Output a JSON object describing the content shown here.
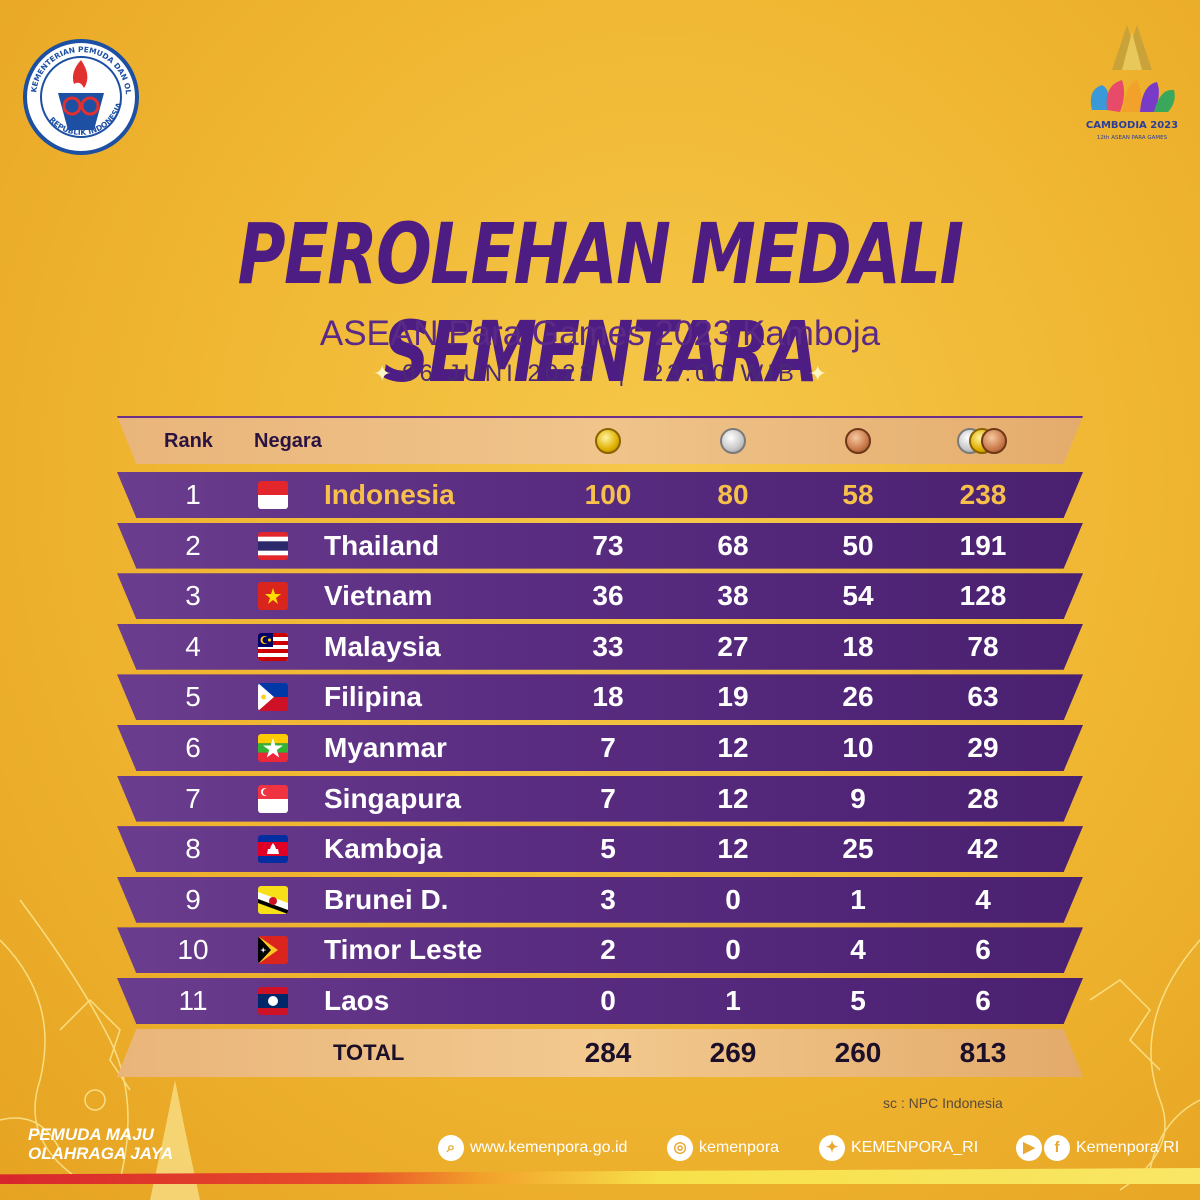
{
  "header": {
    "left_logo_text_top": "KEMENTERIAN PEMUDA DAN OLAHRAGA",
    "left_logo_text_bottom": "REPUBLIK INDONESIA",
    "right_logo_title": "CAMBODIA 2023",
    "right_logo_subtitle": "12th ASEAN PARA GAMES",
    "title": "PEROLEHAN MEDALI SEMENTARA",
    "subtitle": "ASEAN Para Games 2023 Kamboja",
    "date": "06 JUNI 2023",
    "separator": "|",
    "time": "23:00 WIB"
  },
  "table": {
    "headers": {
      "rank": "Rank",
      "country": "Negara"
    },
    "rows": [
      {
        "rank": "1",
        "country": "Indonesia",
        "gold": "100",
        "silver": "80",
        "bronze": "58",
        "total": "238",
        "flag": "indonesia-flag",
        "highlight": true
      },
      {
        "rank": "2",
        "country": "Thailand",
        "gold": "73",
        "silver": "68",
        "bronze": "50",
        "total": "191",
        "flag": "thailand-flag"
      },
      {
        "rank": "3",
        "country": "Vietnam",
        "gold": "36",
        "silver": "38",
        "bronze": "54",
        "total": "128",
        "flag": "vietnam-flag"
      },
      {
        "rank": "4",
        "country": "Malaysia",
        "gold": "33",
        "silver": "27",
        "bronze": "18",
        "total": "78",
        "flag": "malaysia-flag"
      },
      {
        "rank": "5",
        "country": "Filipina",
        "gold": "18",
        "silver": "19",
        "bronze": "26",
        "total": "63",
        "flag": "philippines-flag"
      },
      {
        "rank": "6",
        "country": "Myanmar",
        "gold": "7",
        "silver": "12",
        "bronze": "10",
        "total": "29",
        "flag": "myanmar-flag"
      },
      {
        "rank": "7",
        "country": "Singapura",
        "gold": "7",
        "silver": "12",
        "bronze": "9",
        "total": "28",
        "flag": "singapore-flag"
      },
      {
        "rank": "8",
        "country": "Kamboja",
        "gold": "5",
        "silver": "12",
        "bronze": "25",
        "total": "42",
        "flag": "cambodia-flag"
      },
      {
        "rank": "9",
        "country": "Brunei D.",
        "gold": "3",
        "silver": "0",
        "bronze": "1",
        "total": "4",
        "flag": "brunei-flag"
      },
      {
        "rank": "10",
        "country": "Timor Leste",
        "gold": "2",
        "silver": "0",
        "bronze": "4",
        "total": "6",
        "flag": "timor-leste-flag"
      },
      {
        "rank": "11",
        "country": "Laos",
        "gold": "0",
        "silver": "1",
        "bronze": "5",
        "total": "6",
        "flag": "laos-flag"
      }
    ],
    "total": {
      "label": "TOTAL",
      "gold": "284",
      "silver": "269",
      "bronze": "260",
      "total": "813"
    }
  },
  "source": "sc : NPC Indonesia",
  "footer": {
    "slogan_line1": "PEMUDA MAJU",
    "slogan_line2": "OLAHRAGA JAYA",
    "website": "www.kemenpora.go.id",
    "instagram": "kemenpora",
    "twitter": "KEMENPORA_RI",
    "youtube_facebook": "Kemenpora RI"
  },
  "colors": {
    "background": "#efb530",
    "title": "#4e1d83",
    "row": "#5a2d82",
    "highlight_text": "#f7c04a",
    "header_band": "#f0c48b"
  }
}
